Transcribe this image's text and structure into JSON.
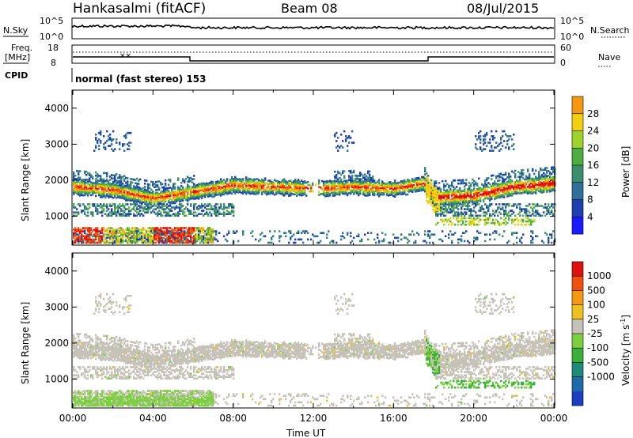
{
  "header": {
    "station": "Hankasalmi (fitACF)",
    "beam": "Beam 08",
    "date": "08/Jul/2015"
  },
  "top_panels": {
    "nsky_label": "N.Sky",
    "nsearch_label": "N.Search",
    "nsky_ticks": [
      "10^5",
      "10^0"
    ],
    "nsearch_ticks": [
      "10^5",
      "10^0"
    ],
    "freq_label_1": "Freq.",
    "freq_label_2": "[MHz]",
    "freq_ticks": [
      "18",
      "8"
    ],
    "nave_ticks": [
      "60",
      "0"
    ],
    "nave_label": "Nave",
    "cpid_label": "CPID",
    "cpid_text": "normal (fast stereo) 153"
  },
  "colors": {
    "power_scale": [
      "#1a1aff",
      "#1e3fb0",
      "#2f6f9a",
      "#3a8f6e",
      "#4cae3c",
      "#9fd22a",
      "#f0d010",
      "#f59a10",
      "#ef5a10",
      "#e01010"
    ],
    "velocity_scale": [
      "#1a3fc0",
      "#1f6aa8",
      "#1e8a7a",
      "#3ab03a",
      "#7cd040",
      "#c6c2b8",
      "#f0c020",
      "#f59a10",
      "#ef5010",
      "#e01010"
    ]
  },
  "chart_data": [
    {
      "type": "heatmap",
      "name": "power",
      "xlabel": "",
      "ylabel": "Slant Range [km]",
      "xlim": [
        0,
        24
      ],
      "ylim": [
        200,
        4500
      ],
      "yticks": [
        "1000",
        "2000",
        "3000",
        "4000"
      ],
      "colorbar_label": "Power [dB]",
      "colorbar_ticks": [
        "4",
        "8",
        "12",
        "16",
        "20",
        "24",
        "28"
      ],
      "main_band_km": [
        {
          "t": 0,
          "r": 1800
        },
        {
          "t": 2,
          "r": 1720
        },
        {
          "t": 4,
          "r": 1480
        },
        {
          "t": 6,
          "r": 1660
        },
        {
          "t": 8,
          "r": 1850
        },
        {
          "t": 10,
          "r": 1800
        },
        {
          "t": 12,
          "r": 1750
        },
        {
          "t": 14,
          "r": 1800
        },
        {
          "t": 16,
          "r": 1750
        },
        {
          "t": 17.5,
          "r": 1900
        },
        {
          "t": 18,
          "r": 1500
        },
        {
          "t": 20,
          "r": 1560
        },
        {
          "t": 22,
          "r": 1800
        },
        {
          "t": 24,
          "r": 1900
        }
      ]
    },
    {
      "type": "heatmap",
      "name": "velocity",
      "xlabel": "Time UT",
      "ylabel": "Slant Range [km]",
      "xlim": [
        0,
        24
      ],
      "ylim": [
        200,
        4500
      ],
      "xticks": [
        "00:00",
        "04:00",
        "08:00",
        "12:00",
        "16:00",
        "20:00",
        "00:00"
      ],
      "yticks": [
        "1000",
        "2000",
        "3000",
        "4000"
      ],
      "colorbar_label": "Velocity [m s",
      "colorbar_label_sup": "-1",
      "colorbar_ticks": [
        "1000",
        "500",
        "100",
        "25",
        "-25",
        "-100",
        "-500",
        "-1000"
      ]
    }
  ]
}
